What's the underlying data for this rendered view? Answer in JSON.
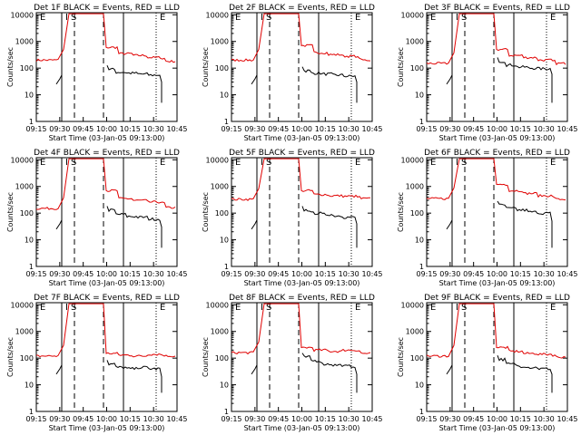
{
  "figure": {
    "xlabel": "Start Time (03-Jan-05 09:13:00)",
    "ylabel": "Counts/sec",
    "x_ticks": [
      "09:15",
      "09:30",
      "09:45",
      "10:00",
      "10:15",
      "10:30",
      "10:45"
    ],
    "y_ticks": [
      "1",
      "10",
      "100",
      "1000",
      "10000"
    ],
    "markers": [
      "E",
      "I",
      "S",
      "E"
    ],
    "colors": {
      "events": "#000000",
      "lld": "#e00000",
      "axis": "#000000"
    }
  },
  "chart_data": [
    {
      "type": "line",
      "title": "Det 1F BLACK = Events, RED = LLD",
      "xlabel": "Start Time (03-Jan-05 09:13:00)",
      "ylabel": "Counts/sec",
      "ylim": [
        1,
        12000
      ],
      "yscale": "log",
      "x_minutes_from_start": [
        5,
        12,
        16,
        20,
        22,
        24,
        26,
        27,
        29,
        33,
        38,
        41,
        45,
        50,
        55,
        60,
        63
      ],
      "series": [
        {
          "name": "Events",
          "color": "#000000",
          "values": [
            null,
            null,
            25,
            28,
            60,
            70,
            80,
            null,
            null,
            null,
            null,
            null,
            null,
            null,
            null,
            null,
            null
          ]
        },
        {
          "name": "LLD",
          "color": "#e00000",
          "values": [
            null,
            null,
            null,
            null,
            null,
            null,
            null,
            null,
            null,
            null,
            null,
            null,
            null,
            null,
            null,
            null,
            null
          ]
        }
      ]
    },
    {
      "type": "line",
      "title": "Det 2F BLACK = Events, RED = LLD",
      "xlabel": "Start Time (03-Jan-05 09:13:00)",
      "ylabel": "Counts/sec",
      "ylim": [
        1,
        12000
      ],
      "yscale": "log"
    },
    {
      "type": "line",
      "title": "Det 3F BLACK = Events, RED = LLD",
      "xlabel": "Start Time (03-Jan-05 09:13:00)",
      "ylabel": "Counts/sec",
      "ylim": [
        1,
        12000
      ],
      "yscale": "log"
    },
    {
      "type": "line",
      "title": "Det 4F BLACK = Events, RED = LLD",
      "xlabel": "Start Time (03-Jan-05 09:13:00)",
      "ylabel": "Counts/sec",
      "ylim": [
        1,
        12000
      ],
      "yscale": "log"
    },
    {
      "type": "line",
      "title": "Det 5F BLACK = Events, RED = LLD",
      "xlabel": "Start Time (03-Jan-05 09:13:00)",
      "ylabel": "Counts/sec",
      "ylim": [
        1,
        12000
      ],
      "yscale": "log"
    },
    {
      "type": "line",
      "title": "Det 6F BLACK = Events, RED = LLD",
      "xlabel": "Start Time (03-Jan-05 09:13:00)",
      "ylabel": "Counts/sec",
      "ylim": [
        1,
        12000
      ],
      "yscale": "log"
    },
    {
      "type": "line",
      "title": "Det 7F BLACK = Events, RED = LLD",
      "xlabel": "Start Time (03-Jan-05 09:13:00)",
      "ylabel": "Counts/sec",
      "ylim": [
        1,
        12000
      ],
      "yscale": "log"
    },
    {
      "type": "line",
      "title": "Det 8F BLACK = Events, RED = LLD",
      "xlabel": "Start Time (03-Jan-05 09:13:00)",
      "ylabel": "Counts/sec",
      "ylim": [
        1,
        12000
      ],
      "yscale": "log"
    },
    {
      "type": "line",
      "title": "Det 9F BLACK = Events, RED = LLD",
      "xlabel": "Start Time (03-Jan-05 09:13:00)",
      "ylabel": "Counts/sec",
      "ylim": [
        1,
        12000
      ],
      "yscale": "log"
    }
  ],
  "panels": [
    {
      "title": "Det 1F BLACK = Events, RED = LLD",
      "lld": {
        "pre": 200,
        "peak_end": 25,
        "post": [
          600,
          350,
          300,
          250,
          230
        ],
        "tail": 180
      },
      "evt": {
        "post": [
          90,
          70,
          65,
          60,
          55
        ],
        "tail": 30
      }
    },
    {
      "title": "Det 2F BLACK = Events, RED = LLD",
      "lld": {
        "pre": 200,
        "peak_end": 24,
        "post": [
          700,
          380,
          320,
          280,
          250
        ],
        "tail": 200
      },
      "evt": {
        "post": [
          80,
          65,
          60,
          55,
          50
        ],
        "tail": 30
      }
    },
    {
      "title": "Det 3F BLACK = Events, RED = LLD",
      "lld": {
        "pre": 150,
        "peak_end": 26,
        "post": [
          500,
          300,
          250,
          200,
          180
        ],
        "tail": 150
      },
      "evt": {
        "post": [
          180,
          130,
          110,
          100,
          95
        ],
        "tail": 60
      }
    },
    {
      "title": "Det 4F BLACK = Events, RED = LLD",
      "lld": {
        "pre": 150,
        "peak_end": 28,
        "post": [
          700,
          350,
          300,
          260,
          240
        ],
        "tail": 160
      },
      "evt": {
        "post": [
          130,
          90,
          75,
          70,
          60
        ],
        "tail": 30
      }
    },
    {
      "title": "Det 5F BLACK = Events, RED = LLD",
      "lld": {
        "pre": 330,
        "peak_end": 26,
        "post": [
          700,
          500,
          450,
          430,
          400
        ],
        "tail": 350
      },
      "evt": {
        "post": [
          130,
          100,
          90,
          80,
          70
        ],
        "tail": 40
      }
    },
    {
      "title": "Det 6F BLACK = Events, RED = LLD",
      "lld": {
        "pre": 350,
        "peak_end": 26,
        "post": [
          1200,
          700,
          550,
          450,
          400
        ],
        "tail": 330
      },
      "evt": {
        "post": [
          200,
          150,
          130,
          110,
          100
        ],
        "tail": 50
      }
    },
    {
      "title": "Det 7F BLACK = Events, RED = LLD",
      "lld": {
        "pre": 120,
        "peak_end": 24,
        "post": [
          150,
          130,
          120,
          140,
          130
        ],
        "tail": 120
      },
      "evt": {
        "post": [
          60,
          45,
          40,
          45,
          40
        ],
        "tail": 20
      }
    },
    {
      "title": "Det 8F BLACK = Events, RED = LLD",
      "lld": {
        "pre": 160,
        "peak_end": 25,
        "post": [
          250,
          200,
          180,
          200,
          190
        ],
        "tail": 150
      },
      "evt": {
        "post": [
          110,
          80,
          60,
          55,
          50
        ],
        "tail": 25
      }
    },
    {
      "title": "Det 9F BLACK = Events, RED = LLD",
      "lld": {
        "pre": 120,
        "peak_end": 27,
        "post": [
          250,
          180,
          150,
          140,
          130
        ],
        "tail": 110
      },
      "evt": {
        "post": [
          90,
          60,
          50,
          45,
          40
        ],
        "tail": 25
      }
    }
  ]
}
